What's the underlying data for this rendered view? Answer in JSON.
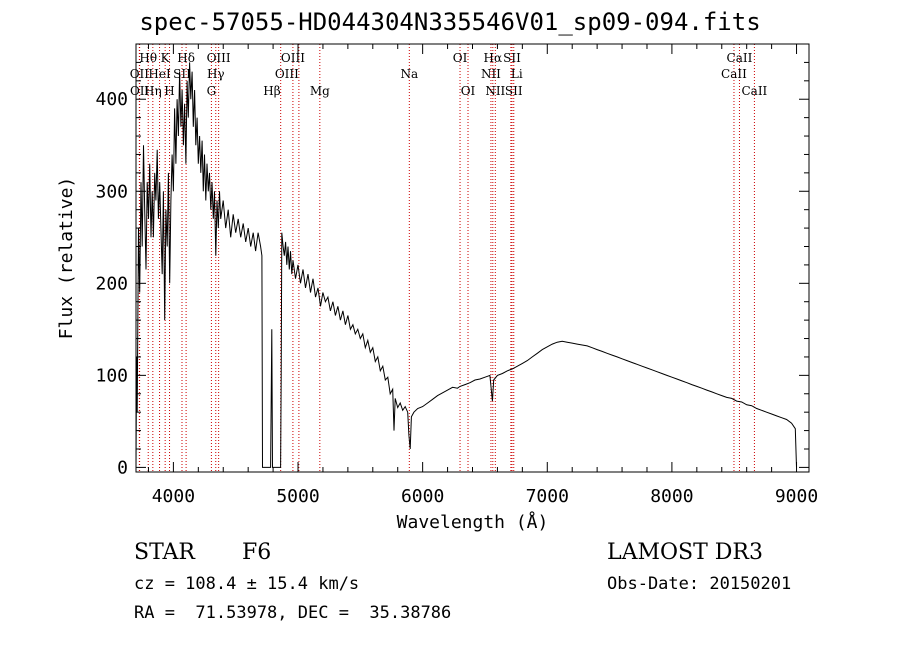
{
  "title": "spec-57055-HD044304N335546V01_sp09-094.fits",
  "info": {
    "object_type": "STAR",
    "subclass": "F6",
    "survey": "LAMOST DR3",
    "cz": "cz = 108.4 ± 15.4 km/s",
    "obs_date": "Obs-Date: 20150201",
    "coords": "RA =  71.53978, DEC =  35.38786"
  },
  "chart_data": {
    "type": "line",
    "title": "spec-57055-HD044304N335546V01_sp09-094.fits",
    "xlabel": "Wavelength (Å)",
    "ylabel": "Flux (relative)",
    "xlim": [
      3700,
      9100
    ],
    "ylim": [
      -5,
      460
    ],
    "xticks": [
      4000,
      5000,
      6000,
      7000,
      8000,
      9000
    ],
    "yticks": [
      0,
      100,
      200,
      300,
      400
    ],
    "line_color": "#000000",
    "marker_color": "#cc0000",
    "series": [
      {
        "name": "flux",
        "points": [
          [
            3700,
            0
          ],
          [
            3705,
            120
          ],
          [
            3710,
            60
          ],
          [
            3720,
            260
          ],
          [
            3730,
            190
          ],
          [
            3740,
            310
          ],
          [
            3750,
            240
          ],
          [
            3760,
            350
          ],
          [
            3770,
            280
          ],
          [
            3780,
            215
          ],
          [
            3790,
            310
          ],
          [
            3800,
            270
          ],
          [
            3810,
            330
          ],
          [
            3820,
            250
          ],
          [
            3830,
            300
          ],
          [
            3840,
            250
          ],
          [
            3850,
            320
          ],
          [
            3860,
            290
          ],
          [
            3870,
            345
          ],
          [
            3880,
            270
          ],
          [
            3890,
            310
          ],
          [
            3900,
            260
          ],
          [
            3910,
            210
          ],
          [
            3920,
            300
          ],
          [
            3930,
            160
          ],
          [
            3940,
            280
          ],
          [
            3950,
            240
          ],
          [
            3960,
            320
          ],
          [
            3970,
            200
          ],
          [
            3980,
            290
          ],
          [
            3990,
            340
          ],
          [
            4000,
            300
          ],
          [
            4010,
            390
          ],
          [
            4020,
            330
          ],
          [
            4030,
            400
          ],
          [
            4040,
            360
          ],
          [
            4050,
            430
          ],
          [
            4060,
            370
          ],
          [
            4070,
            410
          ],
          [
            4080,
            350
          ],
          [
            4090,
            395
          ],
          [
            4100,
            330
          ],
          [
            4110,
            420
          ],
          [
            4120,
            380
          ],
          [
            4130,
            440
          ],
          [
            4140,
            400
          ],
          [
            4150,
            430
          ],
          [
            4160,
            370
          ],
          [
            4170,
            410
          ],
          [
            4180,
            350
          ],
          [
            4190,
            380
          ],
          [
            4200,
            330
          ],
          [
            4210,
            360
          ],
          [
            4220,
            320
          ],
          [
            4230,
            355
          ],
          [
            4240,
            300
          ],
          [
            4250,
            340
          ],
          [
            4260,
            290
          ],
          [
            4270,
            330
          ],
          [
            4280,
            300
          ],
          [
            4290,
            320
          ],
          [
            4300,
            280
          ],
          [
            4310,
            310
          ],
          [
            4320,
            270
          ],
          [
            4330,
            300
          ],
          [
            4340,
            230
          ],
          [
            4350,
            290
          ],
          [
            4360,
            260
          ],
          [
            4370,
            300
          ],
          [
            4380,
            270
          ],
          [
            4400,
            290
          ],
          [
            4420,
            260
          ],
          [
            4440,
            280
          ],
          [
            4460,
            250
          ],
          [
            4480,
            275
          ],
          [
            4500,
            255
          ],
          [
            4520,
            270
          ],
          [
            4540,
            250
          ],
          [
            4560,
            265
          ],
          [
            4580,
            245
          ],
          [
            4600,
            260
          ],
          [
            4620,
            240
          ],
          [
            4640,
            255
          ],
          [
            4660,
            235
          ],
          [
            4680,
            255
          ],
          [
            4700,
            240
          ],
          [
            4710,
            230
          ],
          [
            4715,
            0
          ],
          [
            4720,
            0
          ],
          [
            4740,
            0
          ],
          [
            4760,
            0
          ],
          [
            4780,
            0
          ],
          [
            4790,
            150
          ],
          [
            4795,
            0
          ],
          [
            4820,
            0
          ],
          [
            4840,
            0
          ],
          [
            4860,
            0
          ],
          [
            4865,
            100
          ],
          [
            4870,
            255
          ],
          [
            4880,
            240
          ],
          [
            4890,
            230
          ],
          [
            4900,
            245
          ],
          [
            4910,
            220
          ],
          [
            4920,
            240
          ],
          [
            4930,
            215
          ],
          [
            4940,
            235
          ],
          [
            4950,
            210
          ],
          [
            4960,
            225
          ],
          [
            4980,
            205
          ],
          [
            5000,
            220
          ],
          [
            5020,
            200
          ],
          [
            5040,
            215
          ],
          [
            5060,
            195
          ],
          [
            5080,
            210
          ],
          [
            5100,
            190
          ],
          [
            5120,
            205
          ],
          [
            5140,
            185
          ],
          [
            5160,
            195
          ],
          [
            5180,
            175
          ],
          [
            5200,
            190
          ],
          [
            5220,
            180
          ],
          [
            5240,
            185
          ],
          [
            5260,
            170
          ],
          [
            5280,
            180
          ],
          [
            5300,
            165
          ],
          [
            5320,
            175
          ],
          [
            5340,
            160
          ],
          [
            5360,
            170
          ],
          [
            5380,
            155
          ],
          [
            5400,
            165
          ],
          [
            5420,
            150
          ],
          [
            5440,
            155
          ],
          [
            5460,
            145
          ],
          [
            5480,
            150
          ],
          [
            5500,
            140
          ],
          [
            5520,
            145
          ],
          [
            5540,
            130
          ],
          [
            5560,
            138
          ],
          [
            5580,
            125
          ],
          [
            5600,
            130
          ],
          [
            5620,
            115
          ],
          [
            5640,
            120
          ],
          [
            5660,
            105
          ],
          [
            5680,
            110
          ],
          [
            5700,
            95
          ],
          [
            5720,
            98
          ],
          [
            5740,
            80
          ],
          [
            5760,
            85
          ],
          [
            5770,
            40
          ],
          [
            5780,
            75
          ],
          [
            5800,
            65
          ],
          [
            5820,
            70
          ],
          [
            5840,
            62
          ],
          [
            5860,
            66
          ],
          [
            5880,
            60
          ],
          [
            5890,
            35
          ],
          [
            5900,
            20
          ],
          [
            5910,
            55
          ],
          [
            5930,
            60
          ],
          [
            5960,
            64
          ],
          [
            6000,
            66
          ],
          [
            6040,
            70
          ],
          [
            6080,
            74
          ],
          [
            6120,
            78
          ],
          [
            6160,
            81
          ],
          [
            6200,
            84
          ],
          [
            6240,
            87
          ],
          [
            6280,
            86
          ],
          [
            6300,
            88
          ],
          [
            6340,
            90
          ],
          [
            6380,
            92
          ],
          [
            6420,
            95
          ],
          [
            6460,
            96
          ],
          [
            6500,
            98
          ],
          [
            6540,
            100
          ],
          [
            6560,
            72
          ],
          [
            6570,
            95
          ],
          [
            6600,
            100
          ],
          [
            6640,
            102
          ],
          [
            6680,
            105
          ],
          [
            6720,
            107
          ],
          [
            6760,
            110
          ],
          [
            6800,
            113
          ],
          [
            6840,
            116
          ],
          [
            6880,
            120
          ],
          [
            6920,
            124
          ],
          [
            6960,
            128
          ],
          [
            7000,
            131
          ],
          [
            7040,
            134
          ],
          [
            7080,
            136
          ],
          [
            7120,
            137
          ],
          [
            7160,
            136
          ],
          [
            7200,
            135
          ],
          [
            7240,
            134
          ],
          [
            7280,
            133
          ],
          [
            7320,
            132
          ],
          [
            7360,
            130
          ],
          [
            7400,
            128
          ],
          [
            7440,
            126
          ],
          [
            7480,
            124
          ],
          [
            7520,
            122
          ],
          [
            7560,
            120
          ],
          [
            7600,
            118
          ],
          [
            7640,
            116
          ],
          [
            7680,
            114
          ],
          [
            7720,
            112
          ],
          [
            7760,
            110
          ],
          [
            7800,
            108
          ],
          [
            7840,
            106
          ],
          [
            7880,
            104
          ],
          [
            7920,
            102
          ],
          [
            7960,
            100
          ],
          [
            8000,
            98
          ],
          [
            8040,
            96
          ],
          [
            8080,
            94
          ],
          [
            8120,
            92
          ],
          [
            8160,
            90
          ],
          [
            8200,
            88
          ],
          [
            8240,
            86
          ],
          [
            8280,
            84
          ],
          [
            8320,
            82
          ],
          [
            8360,
            80
          ],
          [
            8400,
            78
          ],
          [
            8440,
            76
          ],
          [
            8480,
            75
          ],
          [
            8520,
            72
          ],
          [
            8560,
            71
          ],
          [
            8600,
            68
          ],
          [
            8640,
            67
          ],
          [
            8680,
            64
          ],
          [
            8720,
            62
          ],
          [
            8760,
            60
          ],
          [
            8800,
            58
          ],
          [
            8840,
            56
          ],
          [
            8880,
            54
          ],
          [
            8920,
            52
          ],
          [
            8960,
            48
          ],
          [
            8990,
            42
          ],
          [
            9000,
            0
          ]
        ]
      }
    ],
    "lines": [
      {
        "label": "Hθ",
        "wave": 3798,
        "row": 0,
        "anchor": "middle"
      },
      {
        "label": "OII",
        "wave": 3727,
        "row": 1,
        "anchor": "middle"
      },
      {
        "label": "OII",
        "wave": 3729,
        "row": 2,
        "anchor": "middle"
      },
      {
        "label": "K",
        "wave": 3934,
        "row": 0,
        "anchor": "middle"
      },
      {
        "label": "HeI",
        "wave": 3889,
        "row": 1,
        "anchor": "middle"
      },
      {
        "label": "Hη",
        "wave": 3835,
        "row": 2,
        "anchor": "middle"
      },
      {
        "label": "Hδ",
        "wave": 4102,
        "row": 0,
        "anchor": "middle"
      },
      {
        "label": "SII",
        "wave": 4069,
        "row": 1,
        "anchor": "middle"
      },
      {
        "label": "H",
        "wave": 3969,
        "row": 2,
        "anchor": "middle"
      },
      {
        "label": "OIII",
        "wave": 4363,
        "row": 0,
        "anchor": "middle"
      },
      {
        "label": "Hγ",
        "wave": 4340,
        "row": 1,
        "anchor": "middle"
      },
      {
        "label": "G",
        "wave": 4305,
        "row": 2,
        "anchor": "middle"
      },
      {
        "label": "OIII",
        "wave": 4959,
        "row": 0,
        "anchor": "middle"
      },
      {
        "label": "OIII",
        "wave": 5007,
        "row": 1,
        "anchor": "end"
      },
      {
        "label": "Hβ",
        "wave": 4861,
        "row": 2,
        "anchor": "end"
      },
      {
        "label": "Mg",
        "wave": 5175,
        "row": 2,
        "anchor": "middle"
      },
      {
        "label": "Na",
        "wave": 5893,
        "row": 1,
        "anchor": "middle"
      },
      {
        "label": "OI",
        "wave": 6300,
        "row": 0,
        "anchor": "middle"
      },
      {
        "label": "OI",
        "wave": 6364,
        "row": 2,
        "anchor": "middle"
      },
      {
        "label": "Hα",
        "wave": 6563,
        "row": 0,
        "anchor": "middle"
      },
      {
        "label": "SII",
        "wave": 6717,
        "row": 0,
        "anchor": "middle"
      },
      {
        "label": "NII",
        "wave": 6548,
        "row": 1,
        "anchor": "middle"
      },
      {
        "label": "Li",
        "wave": 6708,
        "row": 1,
        "anchor": "start"
      },
      {
        "label": "NII",
        "wave": 6583,
        "row": 2,
        "anchor": "middle"
      },
      {
        "label": "SII",
        "wave": 6731,
        "row": 2,
        "anchor": "middle"
      },
      {
        "label": "CaII",
        "wave": 8542,
        "row": 0,
        "anchor": "middle"
      },
      {
        "label": "CaII",
        "wave": 8498,
        "row": 1,
        "anchor": "middle"
      },
      {
        "label": "CaII",
        "wave": 8662,
        "row": 2,
        "anchor": "middle"
      }
    ]
  }
}
